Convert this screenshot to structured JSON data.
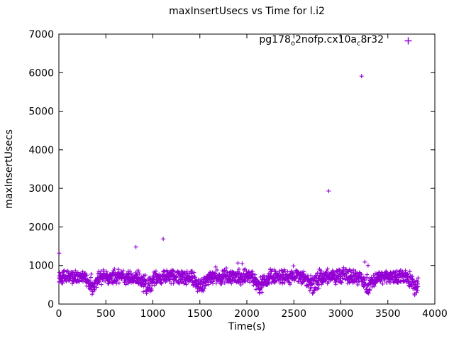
{
  "chart_data": {
    "type": "scatter",
    "title": "maxInsertUsecs vs Time for l.i2",
    "xlabel": "Time(s)",
    "ylabel": "maxInsertUsecs",
    "xlim": [
      0,
      4000
    ],
    "ylim": [
      0,
      7000
    ],
    "xticks": [
      0,
      500,
      1000,
      1500,
      2000,
      2500,
      3000,
      3500,
      4000
    ],
    "yticks": [
      0,
      1000,
      2000,
      3000,
      4000,
      5000,
      6000,
      7000
    ],
    "grid": false,
    "tick_style": "inward-mirrored",
    "legend_position": "top-right-inside",
    "colors": {
      "foreground": "#000000",
      "background": "#ffffff"
    },
    "series": [
      {
        "name": "pg178_o2nofp.cx10a_c8r32",
        "label_parts": [
          {
            "text": "pg178"
          },
          {
            "text": "o",
            "subscript": true
          },
          {
            "text": "2nofp.cx10a"
          },
          {
            "text": "c",
            "subscript": true
          },
          {
            "text": "8r32"
          }
        ],
        "color": "#9400D3",
        "marker": "plus",
        "band": {
          "description": "dense band of per-interval max insert latencies with periodic sawtooth dips",
          "t_start": 0,
          "t_end": 3825,
          "t_step": 2.4,
          "base_min": 490,
          "base_max": 930,
          "floor": 235,
          "dip_centers": [
            360,
            940,
            1510,
            2140,
            2700,
            3290,
            3790
          ],
          "dip_half_width": 90,
          "seed": 1337
        },
        "outliers": [
          [
            3,
            1320
          ],
          [
            820,
            1480
          ],
          [
            1110,
            1690
          ],
          [
            1905,
            1065
          ],
          [
            1950,
            1050
          ],
          [
            2495,
            990
          ],
          [
            2870,
            2930
          ],
          [
            3220,
            5910
          ],
          [
            3255,
            1090
          ],
          [
            3290,
            1000
          ]
        ]
      }
    ]
  }
}
